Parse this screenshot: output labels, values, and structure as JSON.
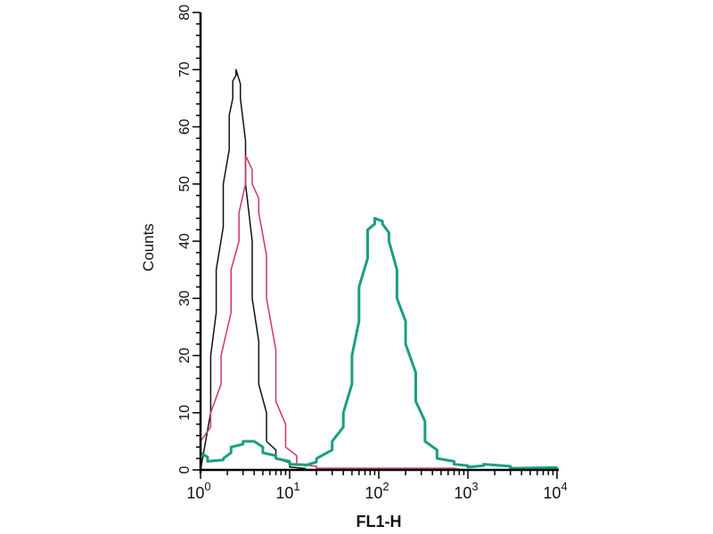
{
  "chart_data": {
    "type": "line",
    "title": "",
    "xlabel": "FL1-H",
    "ylabel": "Counts",
    "xscale": "log",
    "xlim": [
      1,
      10000
    ],
    "ylim": [
      0,
      80
    ],
    "grid": false,
    "x_ticks": [
      {
        "base": "10",
        "exp": "0",
        "value": 1
      },
      {
        "base": "10",
        "exp": "1",
        "value": 10
      },
      {
        "base": "10",
        "exp": "2",
        "value": 100
      },
      {
        "base": "10",
        "exp": "3",
        "value": 1000
      },
      {
        "base": "10",
        "exp": "4",
        "value": 10000
      }
    ],
    "y_ticks": [
      "0",
      "10",
      "20",
      "30",
      "40",
      "50",
      "60",
      "70",
      "80"
    ],
    "series": [
      {
        "color": "#111111",
        "width": 1.5,
        "x": [
          1,
          1,
          1.3,
          1.5,
          1.8,
          2.1,
          2.3,
          2.5,
          2.8,
          3.2,
          3.8,
          4.5,
          5.5,
          7,
          10,
          15,
          10000
        ],
        "y": [
          80,
          0,
          20,
          35,
          50,
          62,
          68,
          70,
          65,
          50,
          30,
          15,
          5,
          2,
          0.5,
          0,
          0
        ]
      },
      {
        "color": "#d0346a",
        "width": 1.5,
        "x": [
          1,
          1,
          1,
          1.3,
          1.7,
          2.2,
          2.7,
          3.2,
          3.8,
          4.5,
          5.5,
          7,
          9,
          12,
          20,
          700,
          800
        ],
        "y": [
          67,
          0,
          5,
          10,
          20,
          35,
          45,
          55,
          50,
          45,
          30,
          12,
          4,
          1,
          0.3,
          0.3,
          0
        ]
      },
      {
        "color": "#1a9e82",
        "width": 3,
        "x": [
          1,
          1.2,
          1.8,
          2.2,
          3,
          4,
          5,
          7,
          10,
          15,
          20,
          30,
          40,
          50,
          60,
          75,
          90,
          110,
          130,
          160,
          200,
          260,
          330,
          450,
          700,
          1000,
          1500,
          3000,
          10000
        ],
        "y": [
          3,
          1.5,
          2,
          4,
          5,
          5,
          3,
          2,
          1,
          0.8,
          2,
          5,
          10,
          20,
          32,
          42,
          44,
          43,
          40,
          30,
          22,
          12,
          5,
          2,
          1,
          0.5,
          1,
          0.3,
          0.5
        ]
      }
    ]
  }
}
